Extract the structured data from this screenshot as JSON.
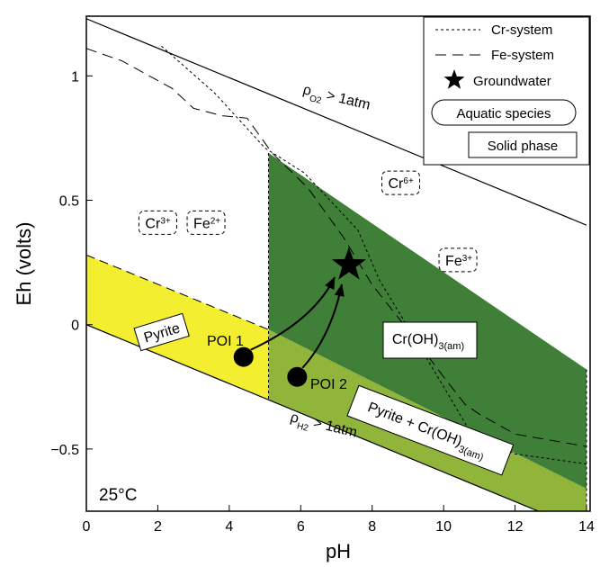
{
  "chart_data": {
    "type": "phase-diagram",
    "title": "",
    "xlabel": "pH",
    "ylabel": "Eh (volts)",
    "xlim": [
      0,
      14.1
    ],
    "ylim": [
      -0.75,
      1.24
    ],
    "xticks": [
      "0",
      "2",
      "4",
      "6",
      "8",
      "10",
      "12",
      "14"
    ],
    "yticks": [
      "−0.5",
      "0",
      "0.5",
      "1"
    ],
    "temperature_label": "25°C",
    "colors": {
      "pyrite": "#f4ee30",
      "croh": "#3f7f37",
      "overlap": "#90b53a"
    },
    "water_limits": {
      "o2_label": "ρO2 > 1atm",
      "o2_label_rho": "ρ",
      "o2_label_sub": "O2",
      "o2_label_rest": " > 1atm",
      "h2_label": "ρH2 > 1atm",
      "h2_label_rho": "ρ",
      "h2_label_sub": "H2",
      "h2_label_rest": " > 1atm",
      "o2_line": [
        [
          0,
          1.23
        ],
        [
          14,
          0.4
        ]
      ],
      "h2_line": [
        [
          0,
          0.0
        ],
        [
          14,
          -0.83
        ]
      ]
    },
    "regions": [
      {
        "name": "Pyrite",
        "label": "Pyrite",
        "color": "#f4ee30",
        "polygon": [
          [
            0,
            0.28
          ],
          [
            5.1,
            -0.02
          ],
          [
            5.1,
            -0.3
          ],
          [
            0,
            0.0
          ]
        ]
      },
      {
        "name": "Cr(OH)3(am)",
        "label": "Cr(OH)",
        "label_sub": "3(am)",
        "color": "#3f7f37",
        "polygon": [
          [
            5.1,
            0.69
          ],
          [
            14,
            -0.18
          ],
          [
            14,
            -0.66
          ],
          [
            5.1,
            -0.02
          ]
        ]
      },
      {
        "name": "Pyrite + Cr(OH)3(am)",
        "label": "Pyrite + Cr(OH)",
        "label_sub": "3(am)",
        "color": "#90b53a",
        "polygon": [
          [
            5.1,
            -0.02
          ],
          [
            14,
            -0.66
          ],
          [
            14,
            -0.83
          ],
          [
            5.1,
            -0.3
          ]
        ]
      }
    ],
    "species_labels": [
      {
        "text": "Cr",
        "sup": "3+",
        "x": 2.0,
        "y": 0.41
      },
      {
        "text": "Fe",
        "sup": "2+",
        "x": 3.35,
        "y": 0.41
      },
      {
        "text": "Cr",
        "sup": "6+",
        "x": 8.8,
        "y": 0.57
      },
      {
        "text": "Fe",
        "sup": "3+",
        "x": 10.4,
        "y": 0.26
      }
    ],
    "cr_system_line": [
      [
        2.1,
        1.12
      ],
      [
        3.6,
        0.93
      ],
      [
        5.0,
        0.71
      ],
      [
        6.1,
        0.61
      ],
      [
        7.6,
        0.38
      ],
      [
        8.2,
        0.18
      ],
      [
        9.0,
        -0.01
      ],
      [
        10.0,
        -0.25
      ],
      [
        10.7,
        -0.42
      ],
      [
        12.0,
        -0.52
      ],
      [
        14,
        -0.56
      ]
    ],
    "fe_system_line": [
      [
        0,
        1.11
      ],
      [
        1.0,
        1.06
      ],
      [
        2.4,
        0.95
      ],
      [
        3.0,
        0.87
      ],
      [
        3.8,
        0.84
      ],
      [
        4.5,
        0.83
      ],
      [
        5.2,
        0.69
      ],
      [
        6.2,
        0.55
      ],
      [
        7.2,
        0.35
      ],
      [
        8.0,
        0.16
      ],
      [
        9.0,
        -0.02
      ],
      [
        10.0,
        -0.21
      ],
      [
        10.6,
        -0.32
      ],
      [
        11.0,
        -0.36
      ],
      [
        12.0,
        -0.44
      ],
      [
        14,
        -0.49
      ]
    ],
    "boundary_verticals": [
      [
        5.1,
        0.69,
        -0.3
      ],
      [
        14,
        -0.18,
        -0.83
      ]
    ],
    "groundwater": {
      "label": "Groundwater",
      "x": 7.35,
      "y": 0.24
    },
    "points": [
      {
        "name": "POI 1",
        "x": 4.4,
        "y": -0.13
      },
      {
        "name": "POI 2",
        "x": 5.9,
        "y": -0.21
      }
    ],
    "legend": {
      "position": "top-right",
      "cr_system": "Cr-system",
      "fe_system": "Fe-system",
      "groundwater": "Groundwater",
      "aquatic": "Aquatic species",
      "solid": "Solid phase"
    }
  }
}
